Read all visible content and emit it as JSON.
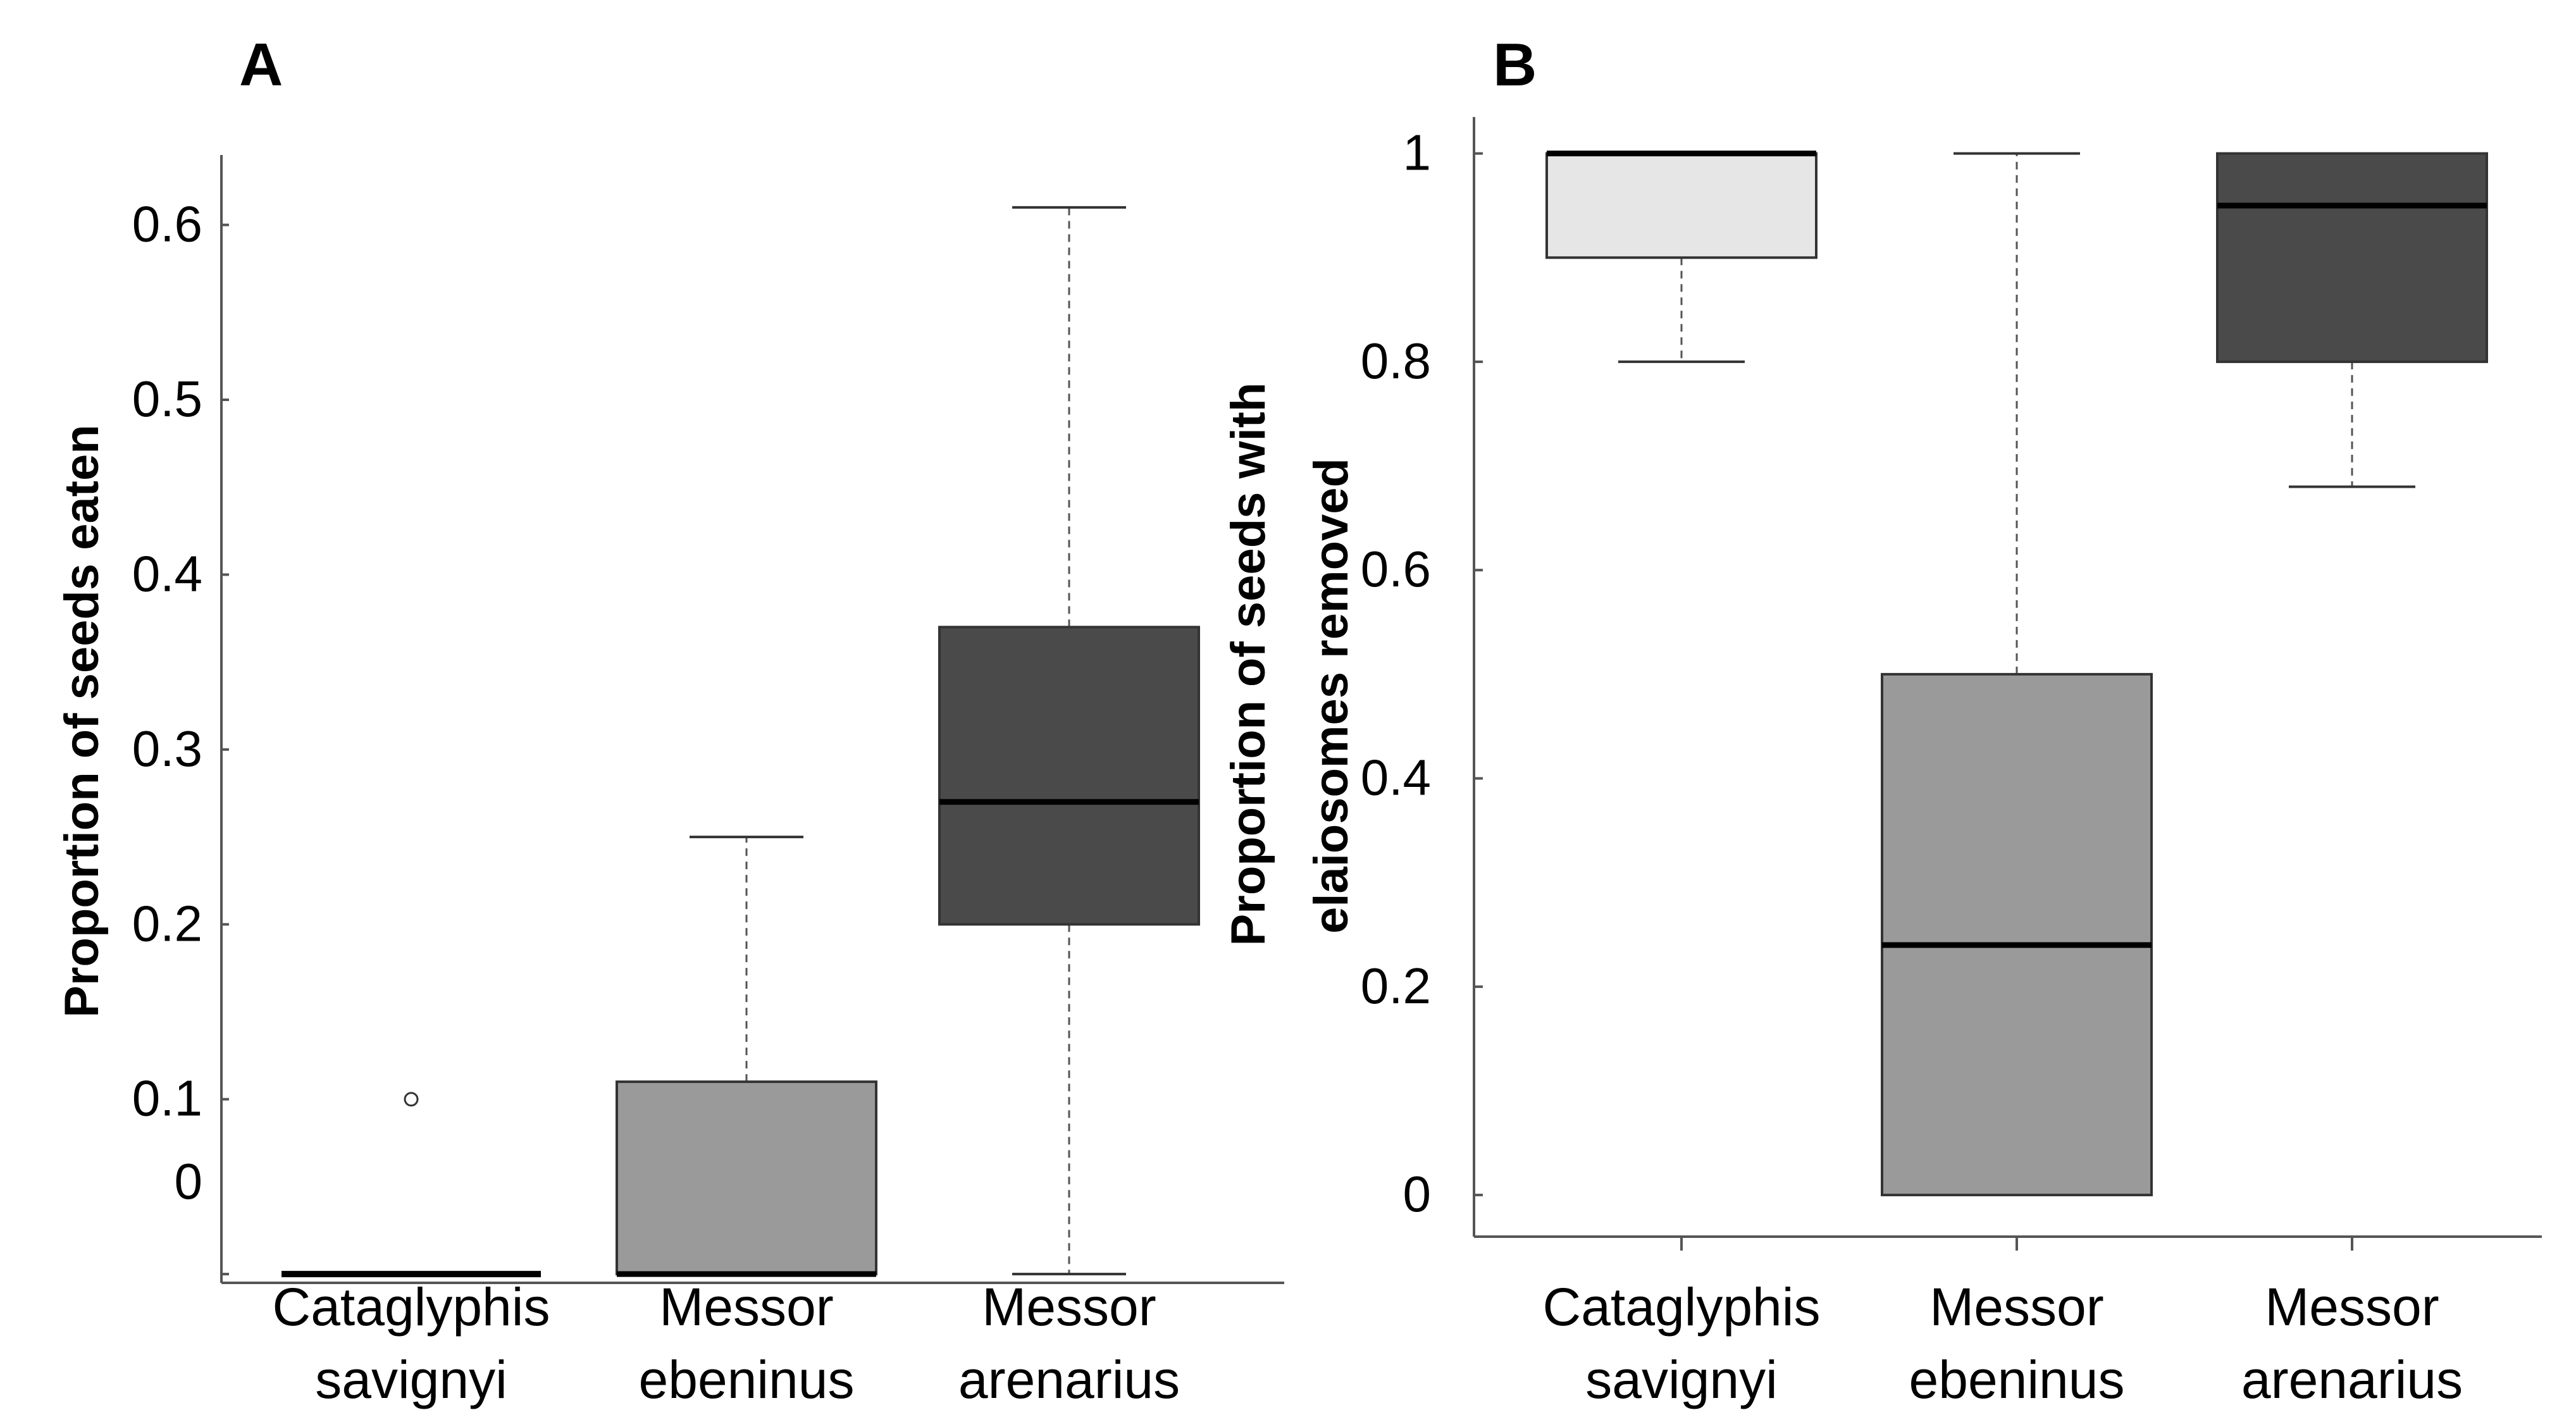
{
  "panels": {
    "a": {
      "letter": "A"
    },
    "b": {
      "letter": "B"
    }
  },
  "colors": {
    "cataglyphis": "#e6e6e6",
    "messor_ebeninus": "#9a9a9a",
    "messor_arenarius": "#4a4a4a",
    "axis": "#555555",
    "median": "#000000"
  },
  "chart_data": [
    {
      "type": "boxplot",
      "panel": "A",
      "title": "",
      "xlabel": "",
      "ylabel": "Proportion of seeds eaten",
      "ylim": [
        -0.005,
        0.64
      ],
      "yticks": [
        {
          "value": 0,
          "label": "0"
        },
        {
          "value": 0.1,
          "label": "0.1"
        },
        {
          "value": 0.2,
          "label": "0.2"
        },
        {
          "value": 0.3,
          "label": "0.3"
        },
        {
          "value": 0.4,
          "label": "0.4"
        },
        {
          "value": 0.5,
          "label": "0.5"
        },
        {
          "value": 0.6,
          "label": "0.6"
        }
      ],
      "categories": [
        {
          "line1": "Cataglyphis",
          "line2": "savignyi"
        },
        {
          "line1": "Messor",
          "line2": "ebeninus"
        },
        {
          "line1": "Messor",
          "line2": "arenarius"
        }
      ],
      "boxes": [
        {
          "min": 0,
          "q1": 0,
          "median": 0,
          "q3": 0,
          "max": 0,
          "outliers": [
            0.1
          ],
          "color_key": "cataglyphis"
        },
        {
          "min": 0,
          "q1": 0,
          "median": 0,
          "q3": 0.11,
          "max": 0.25,
          "outliers": [],
          "color_key": "messor_ebeninus"
        },
        {
          "min": 0,
          "q1": 0.2,
          "median": 0.27,
          "q3": 0.37,
          "max": 0.61,
          "outliers": [],
          "color_key": "messor_arenarius"
        }
      ]
    },
    {
      "type": "boxplot",
      "panel": "B",
      "title": "",
      "xlabel": "",
      "ylabel": "Proportion of seeds with elaiosomes removed",
      "ylabel_lines": [
        "Proportion of seeds with",
        "elaiosomes removed"
      ],
      "ylim": [
        -0.04,
        1.035
      ],
      "yticks": [
        {
          "value": 0,
          "label": "0"
        },
        {
          "value": 0.2,
          "label": "0.2"
        },
        {
          "value": 0.4,
          "label": "0.4"
        },
        {
          "value": 0.6,
          "label": "0.6"
        },
        {
          "value": 0.8,
          "label": "0.8"
        },
        {
          "value": 1,
          "label": "1"
        }
      ],
      "categories": [
        {
          "line1": "Cataglyphis",
          "line2": "savignyi"
        },
        {
          "line1": "Messor",
          "line2": "ebeninus"
        },
        {
          "line1": "Messor",
          "line2": "arenarius"
        }
      ],
      "boxes": [
        {
          "min": 0.8,
          "q1": 0.9,
          "median": 1.0,
          "q3": 1.0,
          "max": 1.0,
          "outliers": [],
          "color_key": "cataglyphis"
        },
        {
          "min": 0,
          "q1": 0,
          "median": 0.24,
          "q3": 0.5,
          "max": 1.0,
          "outliers": [],
          "color_key": "messor_ebeninus"
        },
        {
          "min": 0.68,
          "q1": 0.8,
          "median": 0.95,
          "q3": 1.0,
          "max": 1.0,
          "outliers": [],
          "color_key": "messor_arenarius"
        }
      ]
    }
  ]
}
